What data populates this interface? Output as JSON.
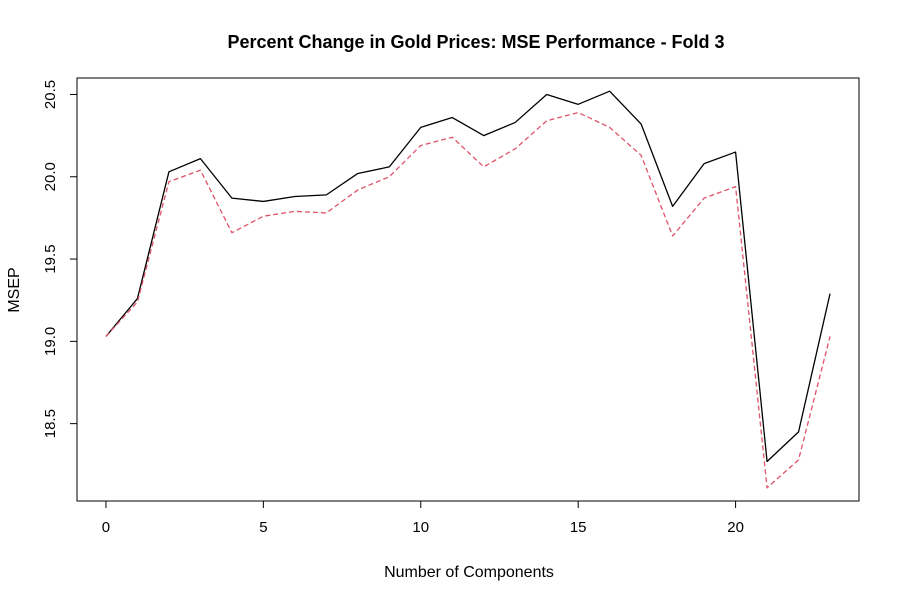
{
  "chart_data": {
    "type": "line",
    "title": "Percent Change in Gold Prices: MSE Performance - Fold 3",
    "xlabel": "Number of Components",
    "ylabel": "MSEP",
    "xlim": [
      -0.92,
      23.92
    ],
    "ylim": [
      18.03,
      20.6
    ],
    "xticks": [
      0,
      5,
      10,
      15,
      20
    ],
    "yticks": [
      18.5,
      19.0,
      19.5,
      20.0,
      20.5
    ],
    "xtick_labels": [
      "0",
      "5",
      "10",
      "15",
      "20"
    ],
    "ytick_labels": [
      "18.5",
      "19.0",
      "19.5",
      "20.0",
      "20.5"
    ],
    "grid": false,
    "x": [
      0,
      1,
      2,
      3,
      4,
      5,
      6,
      7,
      8,
      9,
      10,
      11,
      12,
      13,
      14,
      15,
      16,
      17,
      18,
      19,
      20,
      21,
      22,
      23
    ],
    "series": [
      {
        "color": "#000000",
        "dash": "solid",
        "values": [
          19.03,
          19.26,
          20.03,
          20.11,
          19.87,
          19.85,
          19.88,
          19.89,
          20.02,
          20.06,
          20.3,
          20.36,
          20.25,
          20.33,
          20.5,
          20.44,
          20.52,
          20.32,
          19.82,
          20.08,
          20.15,
          18.27,
          18.45,
          19.29
        ]
      },
      {
        "color": "#DF536B",
        "dash": "dashed",
        "values": [
          19.03,
          19.24,
          19.97,
          20.04,
          19.66,
          19.76,
          19.79,
          19.78,
          19.92,
          20.0,
          20.19,
          20.24,
          20.06,
          20.17,
          20.34,
          20.39,
          20.3,
          20.13,
          19.64,
          19.87,
          19.94,
          18.11,
          18.28,
          19.03
        ]
      }
    ]
  }
}
